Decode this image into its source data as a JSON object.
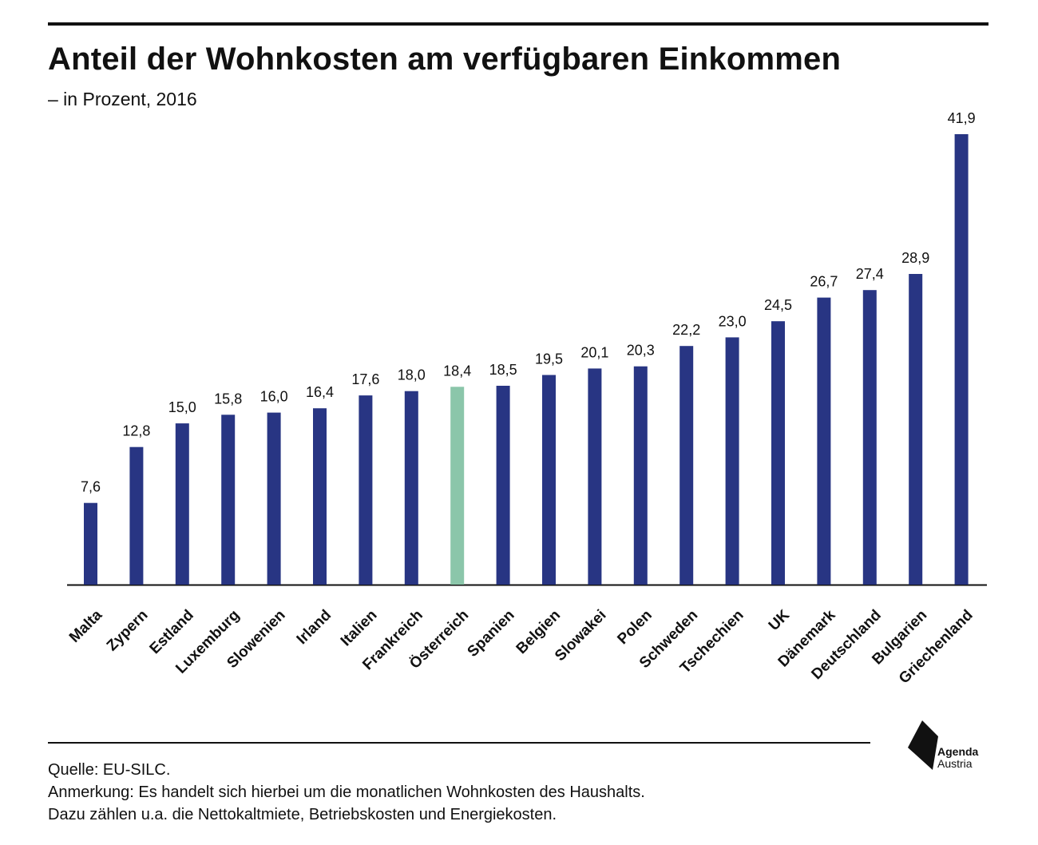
{
  "title": "Anteil der Wohnkosten am verfügbaren Einkommen",
  "subtitle": "– in Prozent, 2016",
  "chart_data": {
    "type": "bar",
    "title": "Anteil der Wohnkosten am verfügbaren Einkommen",
    "subtitle": "– in Prozent, 2016",
    "categories": [
      "Malta",
      "Zypern",
      "Estland",
      "Luxemburg",
      "Slowenien",
      "Irland",
      "Italien",
      "Frankreich",
      "Österreich",
      "Spanien",
      "Belgien",
      "Slowakei",
      "Polen",
      "Schweden",
      "Tschechien",
      "UK",
      "Dänemark",
      "Deutschland",
      "Bulgarien",
      "Griechenland"
    ],
    "values": [
      7.6,
      12.8,
      15.0,
      15.8,
      16.0,
      16.4,
      17.6,
      18.0,
      18.4,
      18.5,
      19.5,
      20.1,
      20.3,
      22.2,
      23.0,
      24.5,
      26.7,
      27.4,
      28.9,
      41.9
    ],
    "value_labels": [
      "7,6",
      "12,8",
      "15,0",
      "15,8",
      "16,0",
      "16,4",
      "17,6",
      "18,0",
      "18,4",
      "18,5",
      "19,5",
      "20,1",
      "20,3",
      "22,2",
      "23,0",
      "24,5",
      "26,7",
      "27,4",
      "28,9",
      "41,9"
    ],
    "highlight": "Österreich",
    "xlabel": "",
    "ylabel": "",
    "ylim": [
      0,
      41.9
    ],
    "grid": false,
    "colors": {
      "bar": "#283583",
      "highlight": "#8bc6aa"
    }
  },
  "footer": {
    "source": "Quelle: EU-SILC.",
    "note1": "Anmerkung: Es handelt sich hierbei um die monatlichen Wohnkosten des Haushalts.",
    "note2": "Dazu zählen u.a. die Nettokaltmiete, Betriebskosten und Energiekosten."
  },
  "logo": {
    "line1": "Agenda",
    "line2": "Austria"
  }
}
